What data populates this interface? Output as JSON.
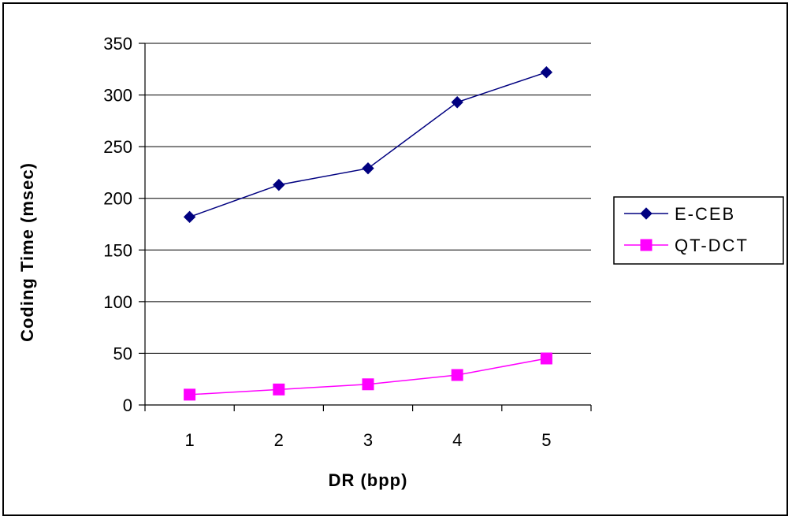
{
  "chart_data": {
    "type": "line",
    "title": "",
    "xlabel": "DR (bpp)",
    "ylabel": "Coding Time (msec)",
    "categories": [
      "1",
      "2",
      "3",
      "4",
      "5"
    ],
    "ylim": [
      0,
      350
    ],
    "yticks": [
      "0",
      "50",
      "100",
      "150",
      "200",
      "250",
      "300",
      "350"
    ],
    "grid": true,
    "legend_position": "right",
    "series": [
      {
        "name": "E-CEB",
        "values": [
          182,
          213,
          229,
          293,
          322
        ],
        "color": "#000080",
        "marker": "diamond"
      },
      {
        "name": "QT-DCT",
        "values": [
          10,
          15,
          20,
          29,
          45
        ],
        "color": "#FF00FF",
        "marker": "square"
      }
    ]
  }
}
